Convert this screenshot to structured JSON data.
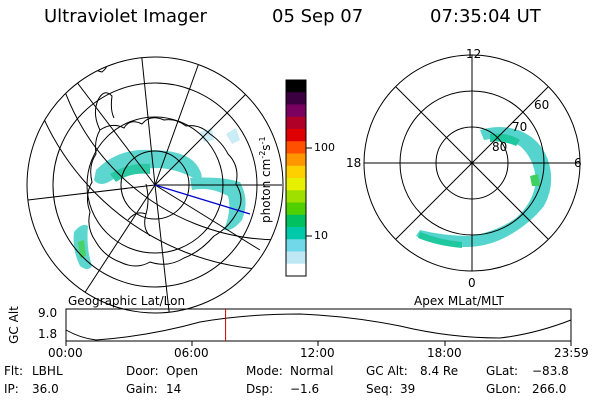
{
  "header": {
    "instrument": "Ultraviolet Imager",
    "date": "05 Sep 07",
    "time": "07:35:04 UT"
  },
  "left_panel": {
    "label": "Geographic Lat/Lon"
  },
  "right_panel": {
    "label": "Apex MLat/MLT",
    "mlt_labels": {
      "top": "12",
      "left": "18",
      "right": "6",
      "bottom": "0"
    },
    "lat_labels": [
      "60",
      "70",
      "80"
    ]
  },
  "colorbar": {
    "unit_label": "photon cm",
    "unit_exp1": "-2",
    "unit_mid": "s",
    "unit_exp2": "-1",
    "ticks": [
      "100",
      "10"
    ],
    "colors": [
      "#000000",
      "#3a0040",
      "#7a0060",
      "#b00028",
      "#e00000",
      "#ff5000",
      "#ff9600",
      "#ffd000",
      "#e6f000",
      "#a0e000",
      "#50d000",
      "#00c060",
      "#00c8a8",
      "#70d8e8",
      "#c0e8f4",
      "#ffffff"
    ]
  },
  "timeline": {
    "ylabel": "GC Alt",
    "yticks": [
      "9.0",
      "1.8"
    ],
    "xticks": [
      "00:00",
      "06:00",
      "12:00",
      "18:00",
      "23:59"
    ],
    "marker_fraction": 0.316
  },
  "footer": {
    "row1": [
      {
        "key": "Flt:",
        "val": "LBHL"
      },
      {
        "key": "Door:",
        "val": "Open"
      },
      {
        "key": "Mode:",
        "val": "Normal"
      },
      {
        "key": "GC Alt:",
        "val": "8.4 Re"
      },
      {
        "key": "GLat:",
        "val": "−83.8"
      }
    ],
    "row2": [
      {
        "key": "IP:",
        "val": "36.0"
      },
      {
        "key": "Gain:",
        "val": "14"
      },
      {
        "key": "Dsp:",
        "val": "−1.6"
      },
      {
        "key": "Seq:",
        "val": "39"
      },
      {
        "key": "GLon:",
        "val": "266.0"
      }
    ]
  }
}
